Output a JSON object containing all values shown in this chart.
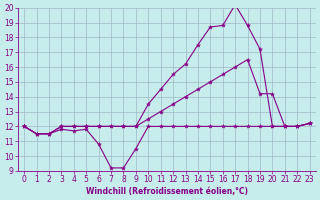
{
  "xlabel": "Windchill (Refroidissement éolien,°C)",
  "xlim": [
    -0.5,
    23.5
  ],
  "ylim": [
    9,
    20
  ],
  "yticks": [
    9,
    10,
    11,
    12,
    13,
    14,
    15,
    16,
    17,
    18,
    19,
    20
  ],
  "xticks": [
    0,
    1,
    2,
    3,
    4,
    5,
    6,
    7,
    8,
    9,
    10,
    11,
    12,
    13,
    14,
    15,
    16,
    17,
    18,
    19,
    20,
    21,
    22,
    23
  ],
  "bg_color": "#c6ecec",
  "grid_color": "#a0b8c8",
  "line_color": "#880088",
  "series": [
    {
      "x": [
        0,
        1,
        2,
        3,
        4,
        5,
        6,
        7,
        8,
        9,
        10,
        11,
        12,
        13,
        14,
        15,
        16,
        17,
        18,
        19,
        20,
        21,
        22,
        23
      ],
      "y": [
        12.0,
        11.5,
        11.5,
        11.8,
        11.7,
        11.8,
        10.8,
        9.2,
        9.2,
        10.5,
        12.0,
        12.0,
        12.0,
        12.0,
        12.0,
        12.0,
        12.0,
        12.0,
        12.0,
        12.0,
        12.0,
        12.0,
        12.0,
        12.2
      ]
    },
    {
      "x": [
        0,
        1,
        2,
        3,
        4,
        5,
        6,
        7,
        8,
        9,
        10,
        11,
        12,
        13,
        14,
        15,
        16,
        17,
        18,
        19,
        20,
        21,
        22,
        23
      ],
      "y": [
        12.0,
        11.5,
        11.5,
        12.0,
        12.0,
        12.0,
        12.0,
        12.0,
        12.0,
        12.0,
        12.5,
        13.0,
        13.5,
        14.0,
        14.5,
        15.0,
        15.5,
        16.0,
        16.5,
        14.2,
        14.2,
        12.0,
        12.0,
        12.2
      ]
    },
    {
      "x": [
        0,
        1,
        2,
        3,
        4,
        5,
        6,
        7,
        8,
        9,
        10,
        11,
        12,
        13,
        14,
        15,
        16,
        17,
        18,
        19,
        20,
        21,
        22,
        23
      ],
      "y": [
        12.0,
        11.5,
        11.5,
        12.0,
        12.0,
        12.0,
        12.0,
        12.0,
        12.0,
        12.0,
        13.5,
        14.5,
        15.5,
        16.2,
        17.5,
        18.7,
        18.8,
        20.2,
        18.8,
        17.2,
        12.0,
        12.0,
        12.0,
        12.2
      ]
    }
  ],
  "figsize": [
    3.2,
    2.0
  ],
  "dpi": 100,
  "tick_labelsize": 5.5,
  "xlabel_fontsize": 5.5
}
